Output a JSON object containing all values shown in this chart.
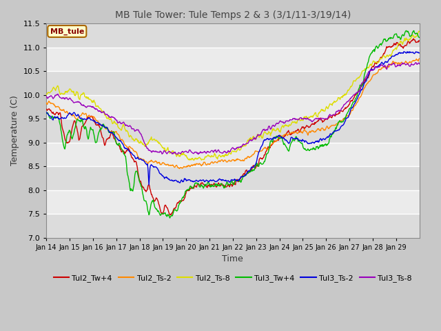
{
  "title": "MB Tule Tower: Tule Temps 2 & 3 (3/1/11-3/19/14)",
  "xlabel": "Time",
  "ylabel": "Temperature (C)",
  "ylim": [
    7.0,
    11.5
  ],
  "yticks": [
    7.0,
    7.5,
    8.0,
    8.5,
    9.0,
    9.5,
    10.0,
    10.5,
    11.0,
    11.5
  ],
  "xtick_labels": [
    "Jan 14",
    "Jan 15",
    "Jan 16",
    "Jan 17",
    "Jan 18",
    "Jan 19",
    "Jan 20",
    "Jan 21",
    "Jan 22",
    "Jan 23",
    "Jan 24",
    "Jan 25",
    "Jan 26",
    "Jan 27",
    "Jan 28",
    "Jan 29"
  ],
  "series_colors": {
    "Tul2_Tw+4": "#cc0000",
    "Tul2_Ts-2": "#ff8800",
    "Tul2_Ts-8": "#dddd00",
    "Tul3_Tw+4": "#00bb00",
    "Tul3_Ts-2": "#0000dd",
    "Tul3_Ts-8": "#9900bb"
  },
  "annotation_text": "MB_tule",
  "annotation_color": "#880000",
  "annotation_bg": "#ffffcc",
  "annotation_border": "#aa6600",
  "fig_bg": "#c8c8c8",
  "plot_bg_light": "#f0f0f0",
  "plot_bg_dark": "#dcdcdc",
  "grid_color": "#ffffff"
}
